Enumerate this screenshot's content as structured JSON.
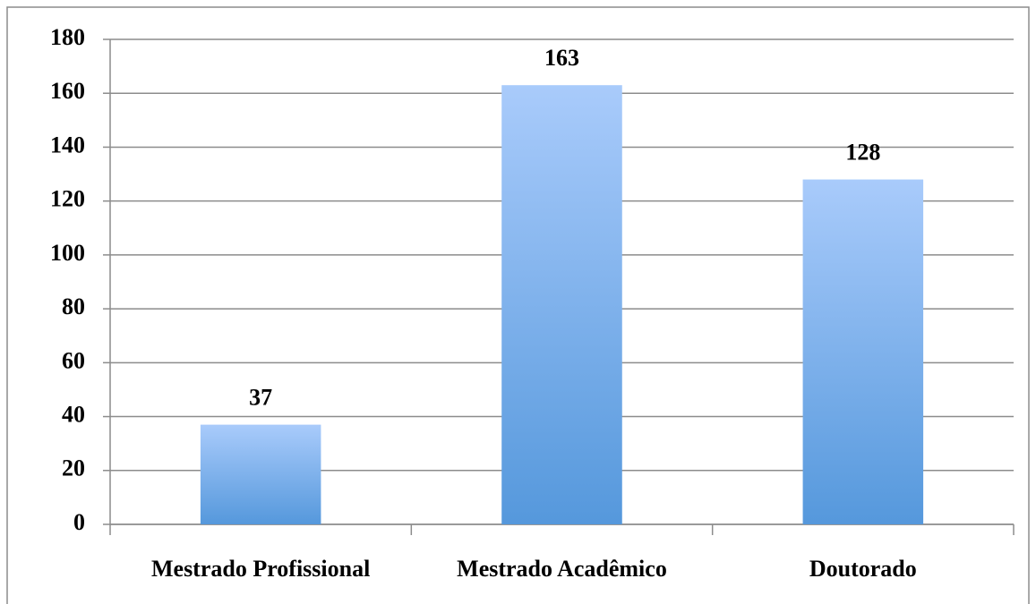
{
  "chart_data": {
    "type": "bar",
    "categories": [
      "Mestrado Profissional",
      "Mestrado Acadêmico",
      "Doutorado"
    ],
    "values": [
      37,
      163,
      128
    ],
    "color": [
      "#a9cbfb",
      "#5598dc"
    ],
    "ylim": [
      0,
      180
    ],
    "yticks": [
      0,
      20,
      40,
      60,
      80,
      100,
      120,
      140,
      160,
      180
    ],
    "grid": true,
    "value_labels_shown": true
  }
}
